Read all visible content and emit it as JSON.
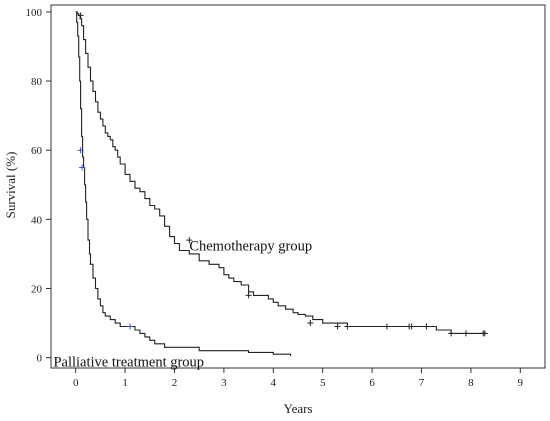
{
  "chart_data": {
    "type": "line",
    "title": "",
    "xlabel": "Years",
    "ylabel": "Survival (%)",
    "xlim": [
      -0.5,
      9.5
    ],
    "ylim": [
      -3,
      102
    ],
    "x_ticks": [
      0,
      1,
      2,
      3,
      4,
      5,
      6,
      7,
      8,
      9
    ],
    "y_ticks": [
      0,
      20,
      40,
      60,
      80,
      100
    ],
    "grid": false,
    "legend": "none (series labelled by in-plot annotations)",
    "series": [
      {
        "name": "Chemotherapy group",
        "color": "#222222",
        "x": [
          0,
          0.03,
          0.06,
          0.09,
          0.12,
          0.16,
          0.2,
          0.25,
          0.3,
          0.35,
          0.4,
          0.45,
          0.5,
          0.55,
          0.6,
          0.65,
          0.7,
          0.75,
          0.8,
          0.85,
          0.9,
          1.0,
          1.1,
          1.2,
          1.3,
          1.4,
          1.5,
          1.6,
          1.7,
          1.8,
          1.9,
          2.0,
          2.1,
          2.3,
          2.5,
          2.7,
          2.9,
          3.0,
          3.1,
          3.2,
          3.35,
          3.5,
          3.6,
          3.75,
          3.9,
          4.0,
          4.1,
          4.25,
          4.4,
          4.5,
          4.65,
          4.8,
          5.0,
          5.2,
          5.5,
          6.0,
          6.5,
          7.0,
          7.3,
          7.6,
          8.0,
          8.3
        ],
        "y": [
          100,
          99.5,
          99,
          98,
          96,
          92,
          88,
          84,
          80,
          77,
          74,
          71,
          69,
          67,
          65,
          64,
          63,
          61,
          60,
          58,
          56,
          53,
          51,
          49,
          48,
          46,
          44,
          43,
          41,
          38,
          35,
          33,
          31,
          30,
          28,
          27,
          26,
          24,
          23,
          22,
          21,
          19,
          18,
          18,
          17,
          16,
          15,
          14,
          13,
          12.5,
          12,
          11,
          10,
          10,
          9,
          9,
          9,
          9,
          8,
          7,
          7,
          7
        ],
        "censor_x": [
          0.1,
          2.3,
          3.5,
          4.75,
          5.3,
          5.5,
          6.3,
          6.75,
          6.8,
          7.1,
          7.6,
          7.9,
          8.25,
          8.28
        ],
        "censor_y": [
          99,
          34,
          18,
          10,
          9,
          9,
          9,
          9,
          9,
          9,
          7,
          7,
          7,
          7
        ]
      },
      {
        "name": "Palliative treatment group",
        "color": "#222222",
        "x": [
          0,
          0.02,
          0.04,
          0.06,
          0.08,
          0.1,
          0.12,
          0.14,
          0.16,
          0.18,
          0.2,
          0.22,
          0.25,
          0.28,
          0.3,
          0.35,
          0.4,
          0.45,
          0.5,
          0.55,
          0.6,
          0.7,
          0.8,
          0.9,
          1.0,
          1.1,
          1.2,
          1.3,
          1.4,
          1.5,
          1.6,
          1.8,
          2.0,
          2.5,
          3.0,
          3.5,
          4.0,
          4.35
        ],
        "y": [
          100,
          97,
          93,
          87,
          80,
          72,
          64,
          58,
          55,
          50,
          45,
          40,
          34,
          30,
          27,
          23,
          20,
          17,
          15,
          13,
          12,
          11,
          10,
          9,
          9,
          9,
          8,
          7,
          6,
          5,
          4,
          3,
          3,
          2,
          2,
          1.5,
          1,
          0.5
        ],
        "censor_x": [
          0.1,
          0.13,
          1.1
        ],
        "censor_y": [
          60,
          55,
          9
        ],
        "censor_color": "#3b4fd0"
      }
    ],
    "annotations": [
      {
        "text": "Chemotherapy group",
        "x": 2.3,
        "y": 31
      },
      {
        "text": "Palliative treatment group",
        "x": -0.45,
        "y": -2.5
      }
    ]
  }
}
